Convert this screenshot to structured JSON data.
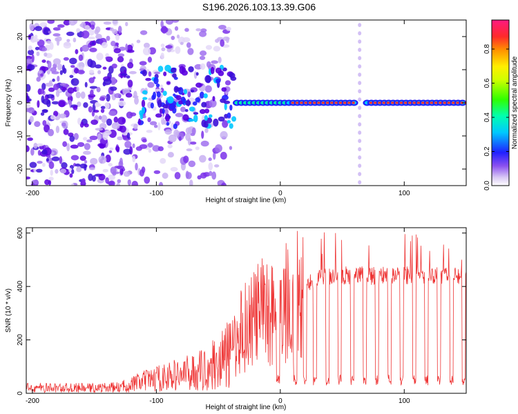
{
  "title": "S196.2026.103.13.39.G06",
  "chart_data": [
    {
      "type": "heatmap",
      "xlabel": "Height of straight line (km)",
      "ylabel": "Frequency (Hz)",
      "xlim": [
        -205,
        150
      ],
      "ylim": [
        -25,
        25
      ],
      "xticks": [
        -200,
        -100,
        0,
        100
      ],
      "yticks": [
        -20,
        -10,
        0,
        10,
        20
      ],
      "colorbar": {
        "label": "Normalized spectral amplitude",
        "range": [
          0.0,
          0.97
        ],
        "ticks": [
          0.0,
          0.2,
          0.4,
          0.6,
          0.8
        ]
      },
      "features": {
        "noise_region_x": [
          -205,
          -40
        ],
        "tone_frequency_hz": 0,
        "tone_start_x": -35,
        "gap_x": [
          62,
          68
        ]
      }
    },
    {
      "type": "line",
      "xlabel": "Height of straight line (km)",
      "ylabel": "SNR (10 * v/v)",
      "xlim": [
        -205,
        150
      ],
      "ylim": [
        0,
        620
      ],
      "xticks": [
        -200,
        -100,
        0,
        100
      ],
      "yticks": [
        0,
        200,
        400,
        600
      ],
      "series": [
        {
          "name": "SNR",
          "color": "#ee3333",
          "x": [
            -205,
            -180,
            -150,
            -130,
            -115,
            -100,
            -80,
            -60,
            -40,
            -30,
            -20,
            -10,
            0,
            10,
            20,
            30,
            40,
            60,
            80,
            100,
            120,
            150
          ],
          "values": [
            20,
            20,
            20,
            22,
            40,
            55,
            70,
            90,
            150,
            250,
            290,
            310,
            320,
            370,
            400,
            430,
            440,
            440,
            440,
            440,
            440,
            440
          ]
        }
      ],
      "dropouts_x": [
        -2,
        12,
        20,
        28,
        38,
        48,
        58,
        68,
        78,
        88,
        98,
        108,
        118,
        128,
        138,
        148
      ]
    }
  ]
}
